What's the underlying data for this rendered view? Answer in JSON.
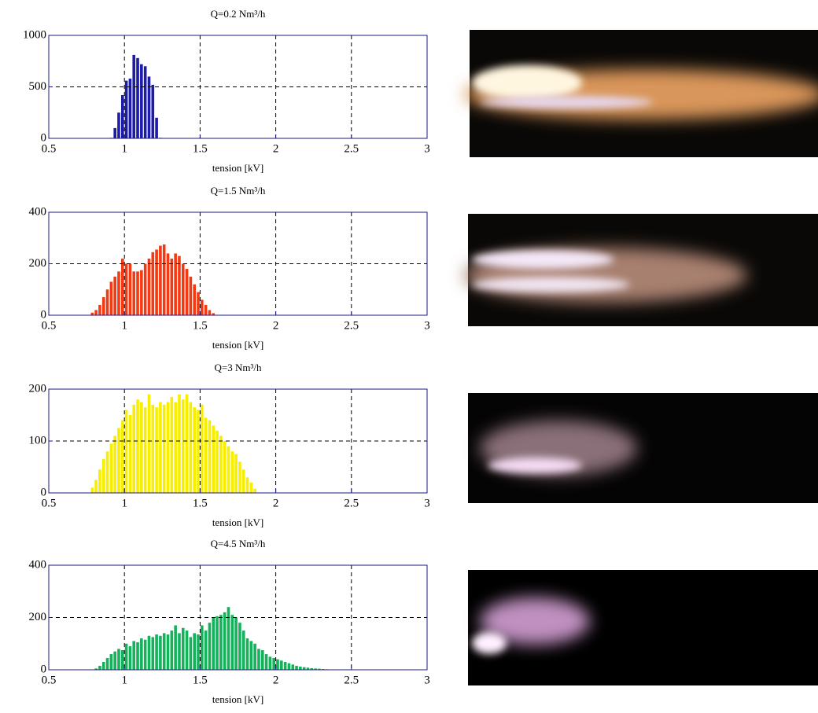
{
  "chart_data": [
    {
      "type": "histogram",
      "title": "Q=0.2 Nm³/h",
      "xlabel": "tension [kV]",
      "color": "#1c1ca8",
      "bins": [
        0.9,
        0.925,
        0.95,
        0.975,
        1,
        1.025,
        1.05,
        1.075,
        1.1,
        1.125,
        1.15,
        1.175,
        1.2,
        1.225,
        1.25
      ],
      "values": [
        5,
        100,
        250,
        420,
        560,
        580,
        810,
        780,
        720,
        700,
        600,
        520,
        200,
        5
      ],
      "xlim": [
        0.5,
        3
      ],
      "ylim": [
        0,
        1000
      ],
      "xticks": [
        0.5,
        1,
        1.5,
        2,
        2.5,
        3
      ],
      "yticks": [
        0,
        500,
        1000
      ],
      "grid": true
    },
    {
      "type": "histogram",
      "title": "Q=1.5 Nm³/h",
      "xlabel": "tension [kV]",
      "color": "#f23a14",
      "bins": [
        0.775,
        0.8,
        0.825,
        0.85,
        0.875,
        0.9,
        0.925,
        0.95,
        0.975,
        1,
        1.025,
        1.05,
        1.075,
        1.1,
        1.125,
        1.15,
        1.175,
        1.2,
        1.225,
        1.25,
        1.275,
        1.3,
        1.325,
        1.35,
        1.375,
        1.4,
        1.425,
        1.45,
        1.475,
        1.5,
        1.525,
        1.55,
        1.575,
        1.6
      ],
      "values": [
        10,
        20,
        40,
        70,
        100,
        130,
        150,
        170,
        220,
        200,
        200,
        170,
        170,
        175,
        200,
        220,
        245,
        255,
        270,
        275,
        240,
        220,
        240,
        230,
        200,
        180,
        150,
        120,
        90,
        60,
        40,
        20,
        8
      ],
      "xlim": [
        0.5,
        3
      ],
      "ylim": [
        0,
        400
      ],
      "xticks": [
        0.5,
        1,
        1.5,
        2,
        2.5,
        3
      ],
      "yticks": [
        0,
        200,
        400
      ],
      "grid": true
    },
    {
      "type": "histogram",
      "title": "Q=3 Nm³/h",
      "xlabel": "tension [kV]",
      "color": "#f8ee00",
      "bins": [
        0.775,
        0.8,
        0.825,
        0.85,
        0.875,
        0.9,
        0.925,
        0.95,
        0.975,
        1,
        1.025,
        1.05,
        1.075,
        1.1,
        1.125,
        1.15,
        1.175,
        1.2,
        1.225,
        1.25,
        1.275,
        1.3,
        1.325,
        1.35,
        1.375,
        1.4,
        1.425,
        1.45,
        1.475,
        1.5,
        1.525,
        1.55,
        1.575,
        1.6,
        1.625,
        1.65,
        1.675,
        1.7,
        1.725,
        1.75,
        1.775,
        1.8,
        1.825,
        1.85,
        1.875
      ],
      "values": [
        10,
        25,
        45,
        65,
        80,
        95,
        110,
        125,
        140,
        160,
        150,
        170,
        180,
        175,
        165,
        190,
        170,
        165,
        175,
        170,
        175,
        185,
        175,
        190,
        180,
        190,
        175,
        165,
        160,
        170,
        145,
        140,
        130,
        120,
        110,
        100,
        90,
        80,
        75,
        60,
        45,
        30,
        20,
        8
      ],
      "xlim": [
        0.5,
        3
      ],
      "ylim": [
        0,
        200
      ],
      "xticks": [
        0.5,
        1,
        1.5,
        2,
        2.5,
        3
      ],
      "yticks": [
        0,
        100,
        200
      ],
      "grid": true
    },
    {
      "type": "histogram",
      "title": "Q=4.5 Nm³/h",
      "xlabel": "tension [kV]",
      "color": "#14b25a",
      "bins": [
        0.8,
        0.825,
        0.85,
        0.875,
        0.9,
        0.925,
        0.95,
        0.975,
        1,
        1.025,
        1.05,
        1.075,
        1.1,
        1.125,
        1.15,
        1.175,
        1.2,
        1.225,
        1.25,
        1.275,
        1.3,
        1.325,
        1.35,
        1.375,
        1.4,
        1.425,
        1.45,
        1.475,
        1.5,
        1.525,
        1.55,
        1.575,
        1.6,
        1.625,
        1.65,
        1.675,
        1.7,
        1.725,
        1.75,
        1.775,
        1.8,
        1.825,
        1.85,
        1.875,
        1.9,
        1.925,
        1.95,
        1.975,
        2,
        2.025,
        2.05,
        2.075,
        2.1,
        2.125,
        2.15,
        2.175,
        2.2,
        2.225,
        2.25,
        2.275,
        2.3,
        2.325,
        2.35
      ],
      "values": [
        5,
        15,
        30,
        45,
        60,
        70,
        80,
        75,
        100,
        90,
        110,
        105,
        120,
        115,
        130,
        125,
        135,
        130,
        140,
        135,
        150,
        170,
        140,
        160,
        150,
        125,
        140,
        135,
        170,
        150,
        180,
        200,
        205,
        210,
        220,
        240,
        210,
        200,
        180,
        150,
        120,
        110,
        100,
        80,
        75,
        60,
        50,
        45,
        40,
        35,
        30,
        25,
        20,
        15,
        12,
        10,
        8,
        6,
        5,
        4,
        3,
        2
      ],
      "xlim": [
        0.5,
        3
      ],
      "ylim": [
        0,
        400
      ],
      "xticks": [
        0.5,
        1,
        1.5,
        2,
        2.5,
        3
      ],
      "yticks": [
        0,
        200,
        400
      ],
      "grid": true
    }
  ]
}
